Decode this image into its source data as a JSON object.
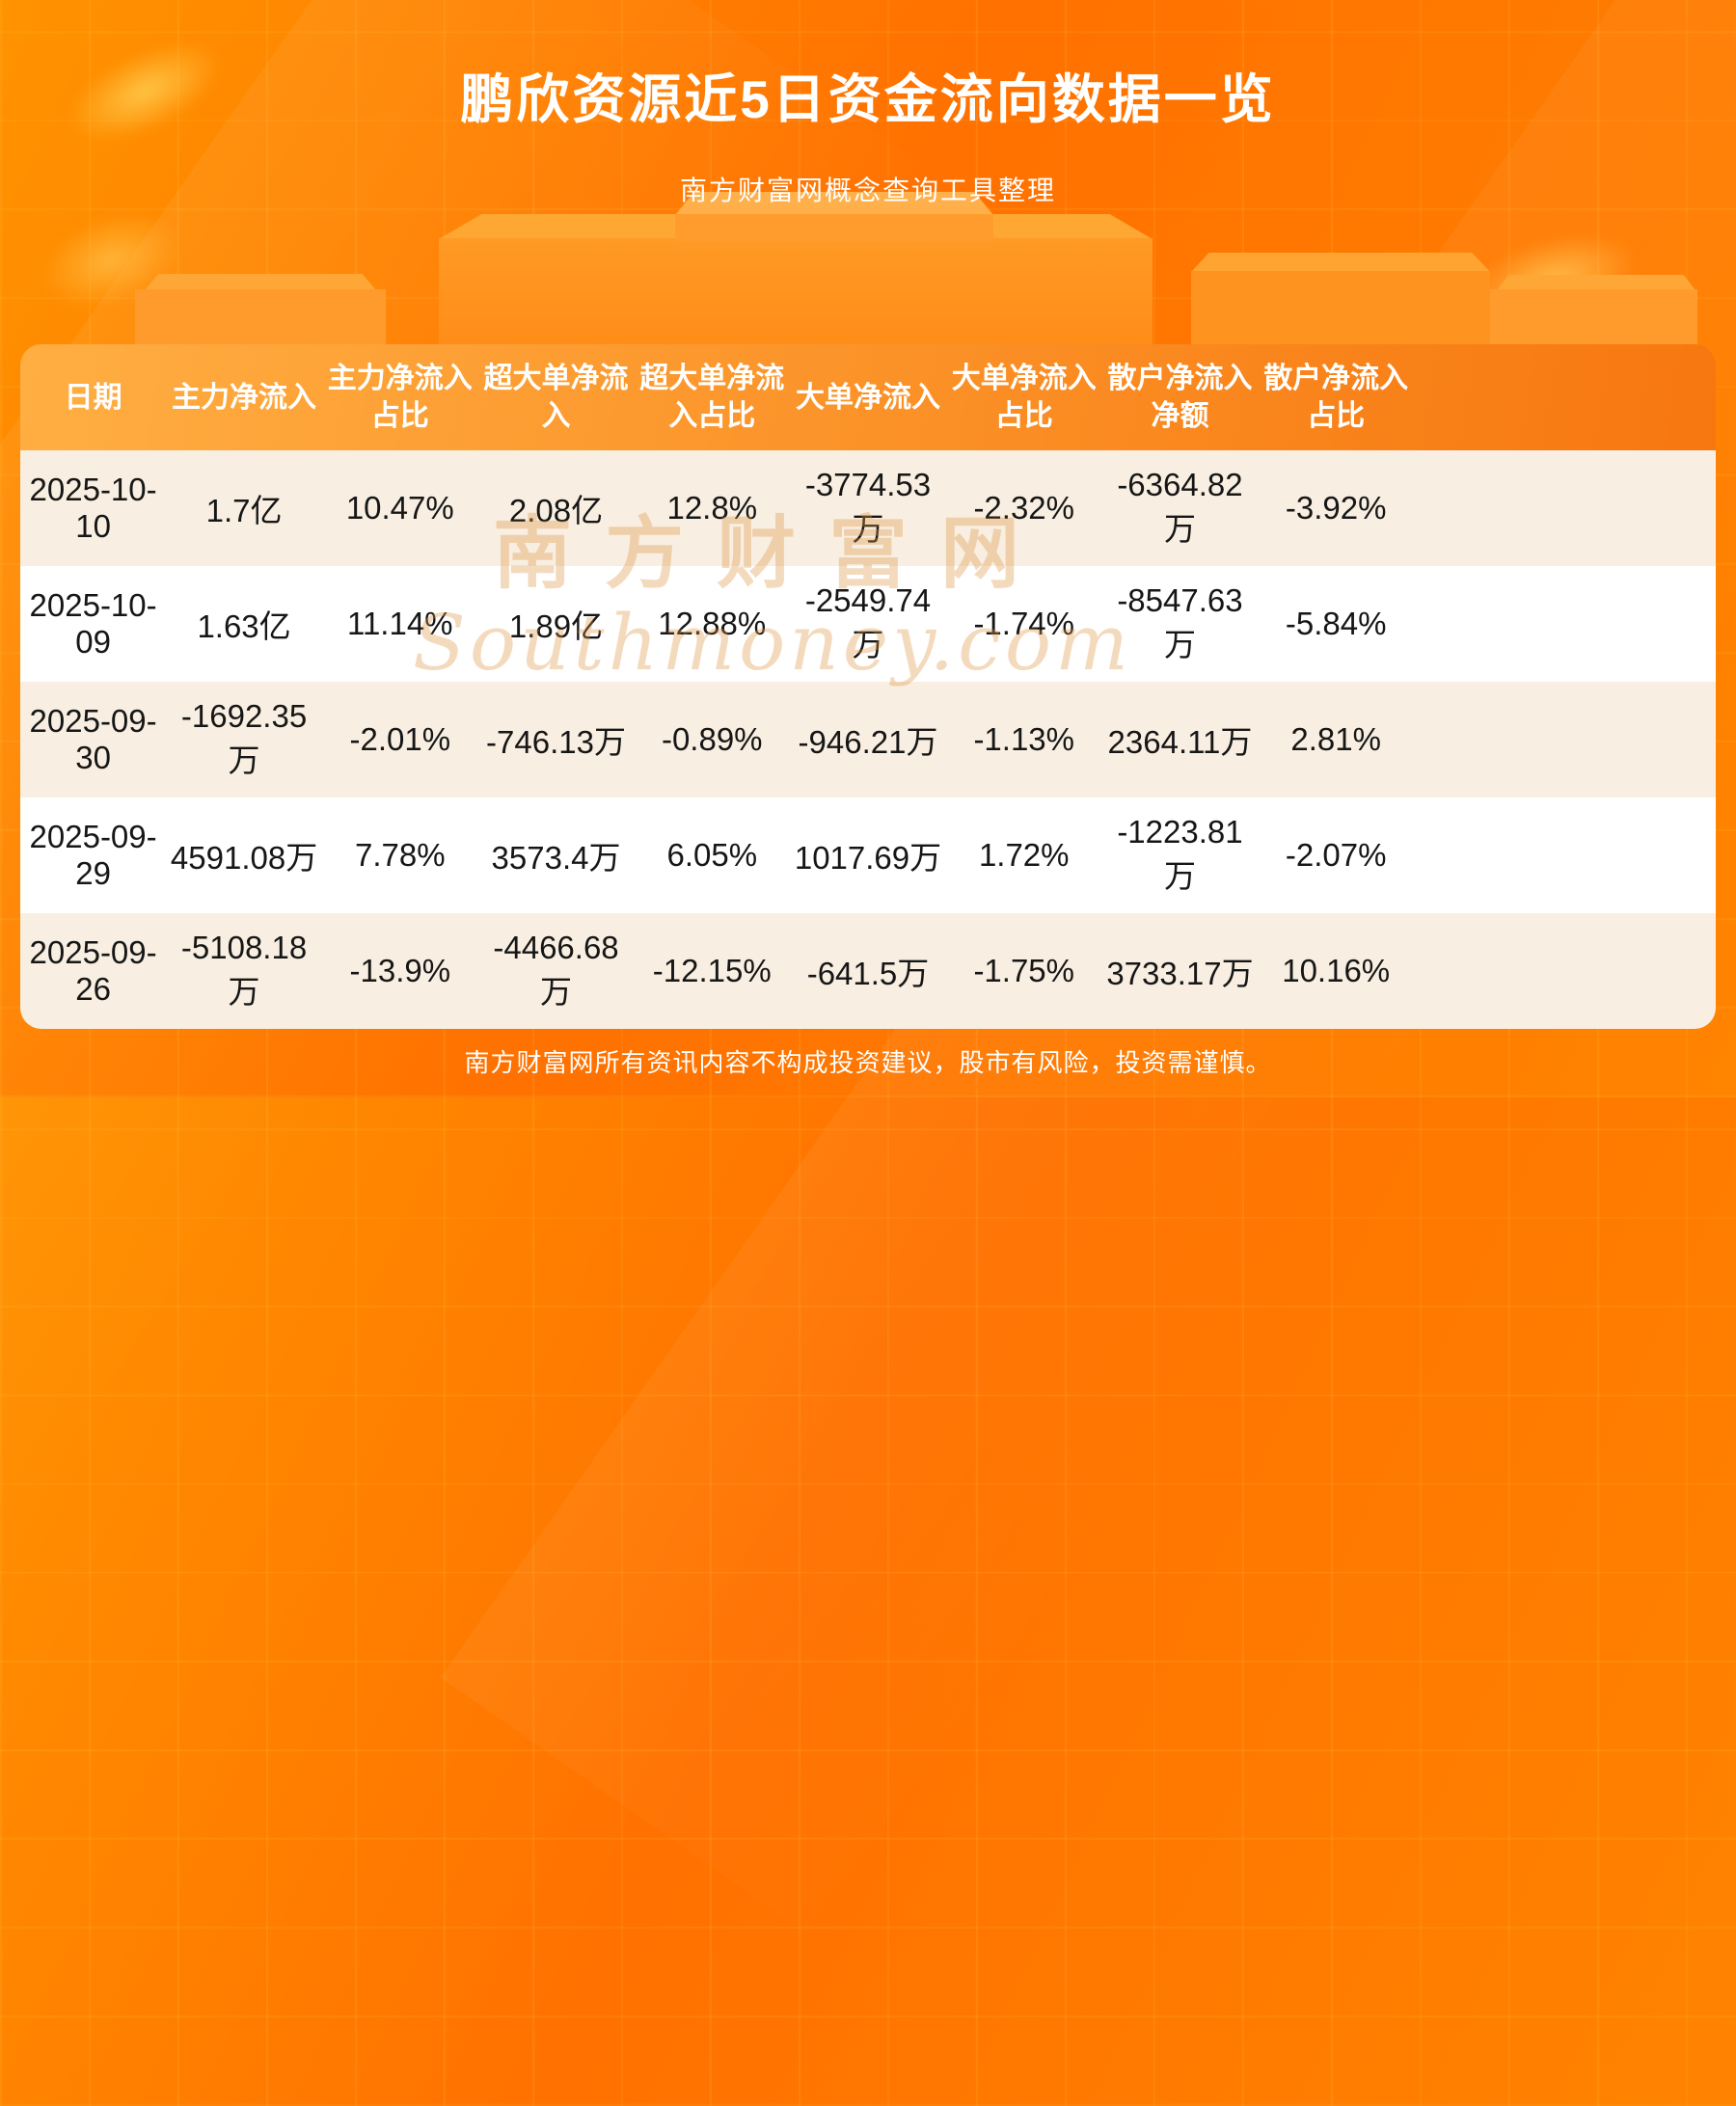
{
  "page": {
    "title": "鹏欣资源近5日资金流向数据一览",
    "subtitle": "南方财富网概念查询工具整理",
    "footer": "南方财富网所有资讯内容不构成投资建议，股市有风险，投资需谨慎。",
    "watermark_cn": "南方财富网",
    "watermark_en": "Southmoney.com"
  },
  "colors": {
    "brand_orange": "#ff7100",
    "header_gradient_start": "#ffae42",
    "header_gradient_end": "#f7770f",
    "row_alt_cream": "#f8efe2",
    "row_white": "#ffffff",
    "cell_text": "#161616",
    "title_text": "#ffffff"
  },
  "chart_data": {
    "type": "table",
    "title": "鹏欣资源近5日资金流向数据一览",
    "columns": [
      "日期",
      "主力净流入",
      "主力净流入\n占比",
      "超大单净流\n入",
      "超大单净流\n入占比",
      "大单净流入",
      "大单净流入\n占比",
      "散户净流入\n净额",
      "散户净流入\n占比"
    ],
    "rows": [
      [
        "2025-10-10",
        "1.7亿",
        "10.47%",
        "2.08亿",
        "12.8%",
        "-3774.53万",
        "-2.32%",
        "-6364.82万",
        "-3.92%"
      ],
      [
        "2025-10-09",
        "1.63亿",
        "11.14%",
        "1.89亿",
        "12.88%",
        "-2549.74万",
        "-1.74%",
        "-8547.63万",
        "-5.84%"
      ],
      [
        "2025-09-30",
        "-1692.35万",
        "-2.01%",
        "-746.13万",
        "-0.89%",
        "-946.21万",
        "-1.13%",
        "2364.11万",
        "2.81%"
      ],
      [
        "2025-09-29",
        "4591.08万",
        "7.78%",
        "3573.4万",
        "6.05%",
        "1017.69万",
        "1.72%",
        "-1223.81万",
        "-2.07%"
      ],
      [
        "2025-09-26",
        "-5108.18万",
        "-13.9%",
        "-4466.68万",
        "-12.15%",
        "-641.5万",
        "-1.75%",
        "3733.17万",
        "10.16%"
      ]
    ]
  }
}
